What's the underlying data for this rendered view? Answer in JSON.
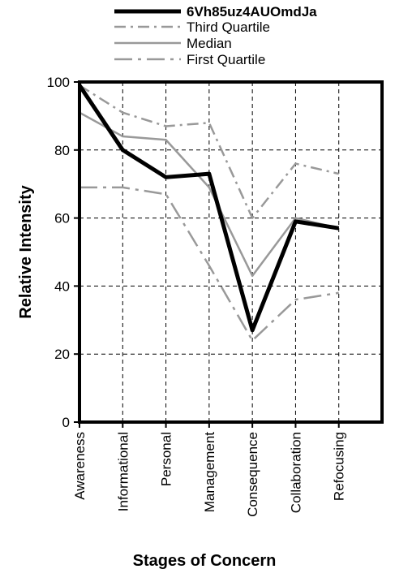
{
  "chart_data": {
    "type": "line",
    "title": "",
    "xlabel": "Stages of Concern",
    "ylabel": "Relative Intensity",
    "ylim": [
      0,
      100
    ],
    "yticks": [
      0,
      20,
      40,
      60,
      80,
      100
    ],
    "categories": [
      "Awareness",
      "Informational",
      "Personal",
      "Management",
      "Consequence",
      "Collaboration",
      "Refocusing"
    ],
    "grid": true,
    "legend_position": "top-center",
    "series": [
      {
        "name": "6Vh85uz4AUOmdJa",
        "values": [
          99,
          80,
          72,
          73,
          27,
          59,
          57
        ],
        "color": "#000000",
        "style": "solid-thick"
      },
      {
        "name": "Third Quartile",
        "values": [
          99,
          91,
          87,
          88,
          60,
          76,
          73
        ],
        "color": "#999999",
        "style": "dash-dot"
      },
      {
        "name": "Median",
        "values": [
          91,
          84,
          83,
          69,
          43,
          60,
          57
        ],
        "color": "#999999",
        "style": "solid"
      },
      {
        "name": "First Quartile",
        "values": [
          69,
          69,
          67,
          46,
          24,
          36,
          38
        ],
        "color": "#999999",
        "style": "long-dash-dot"
      }
    ]
  }
}
